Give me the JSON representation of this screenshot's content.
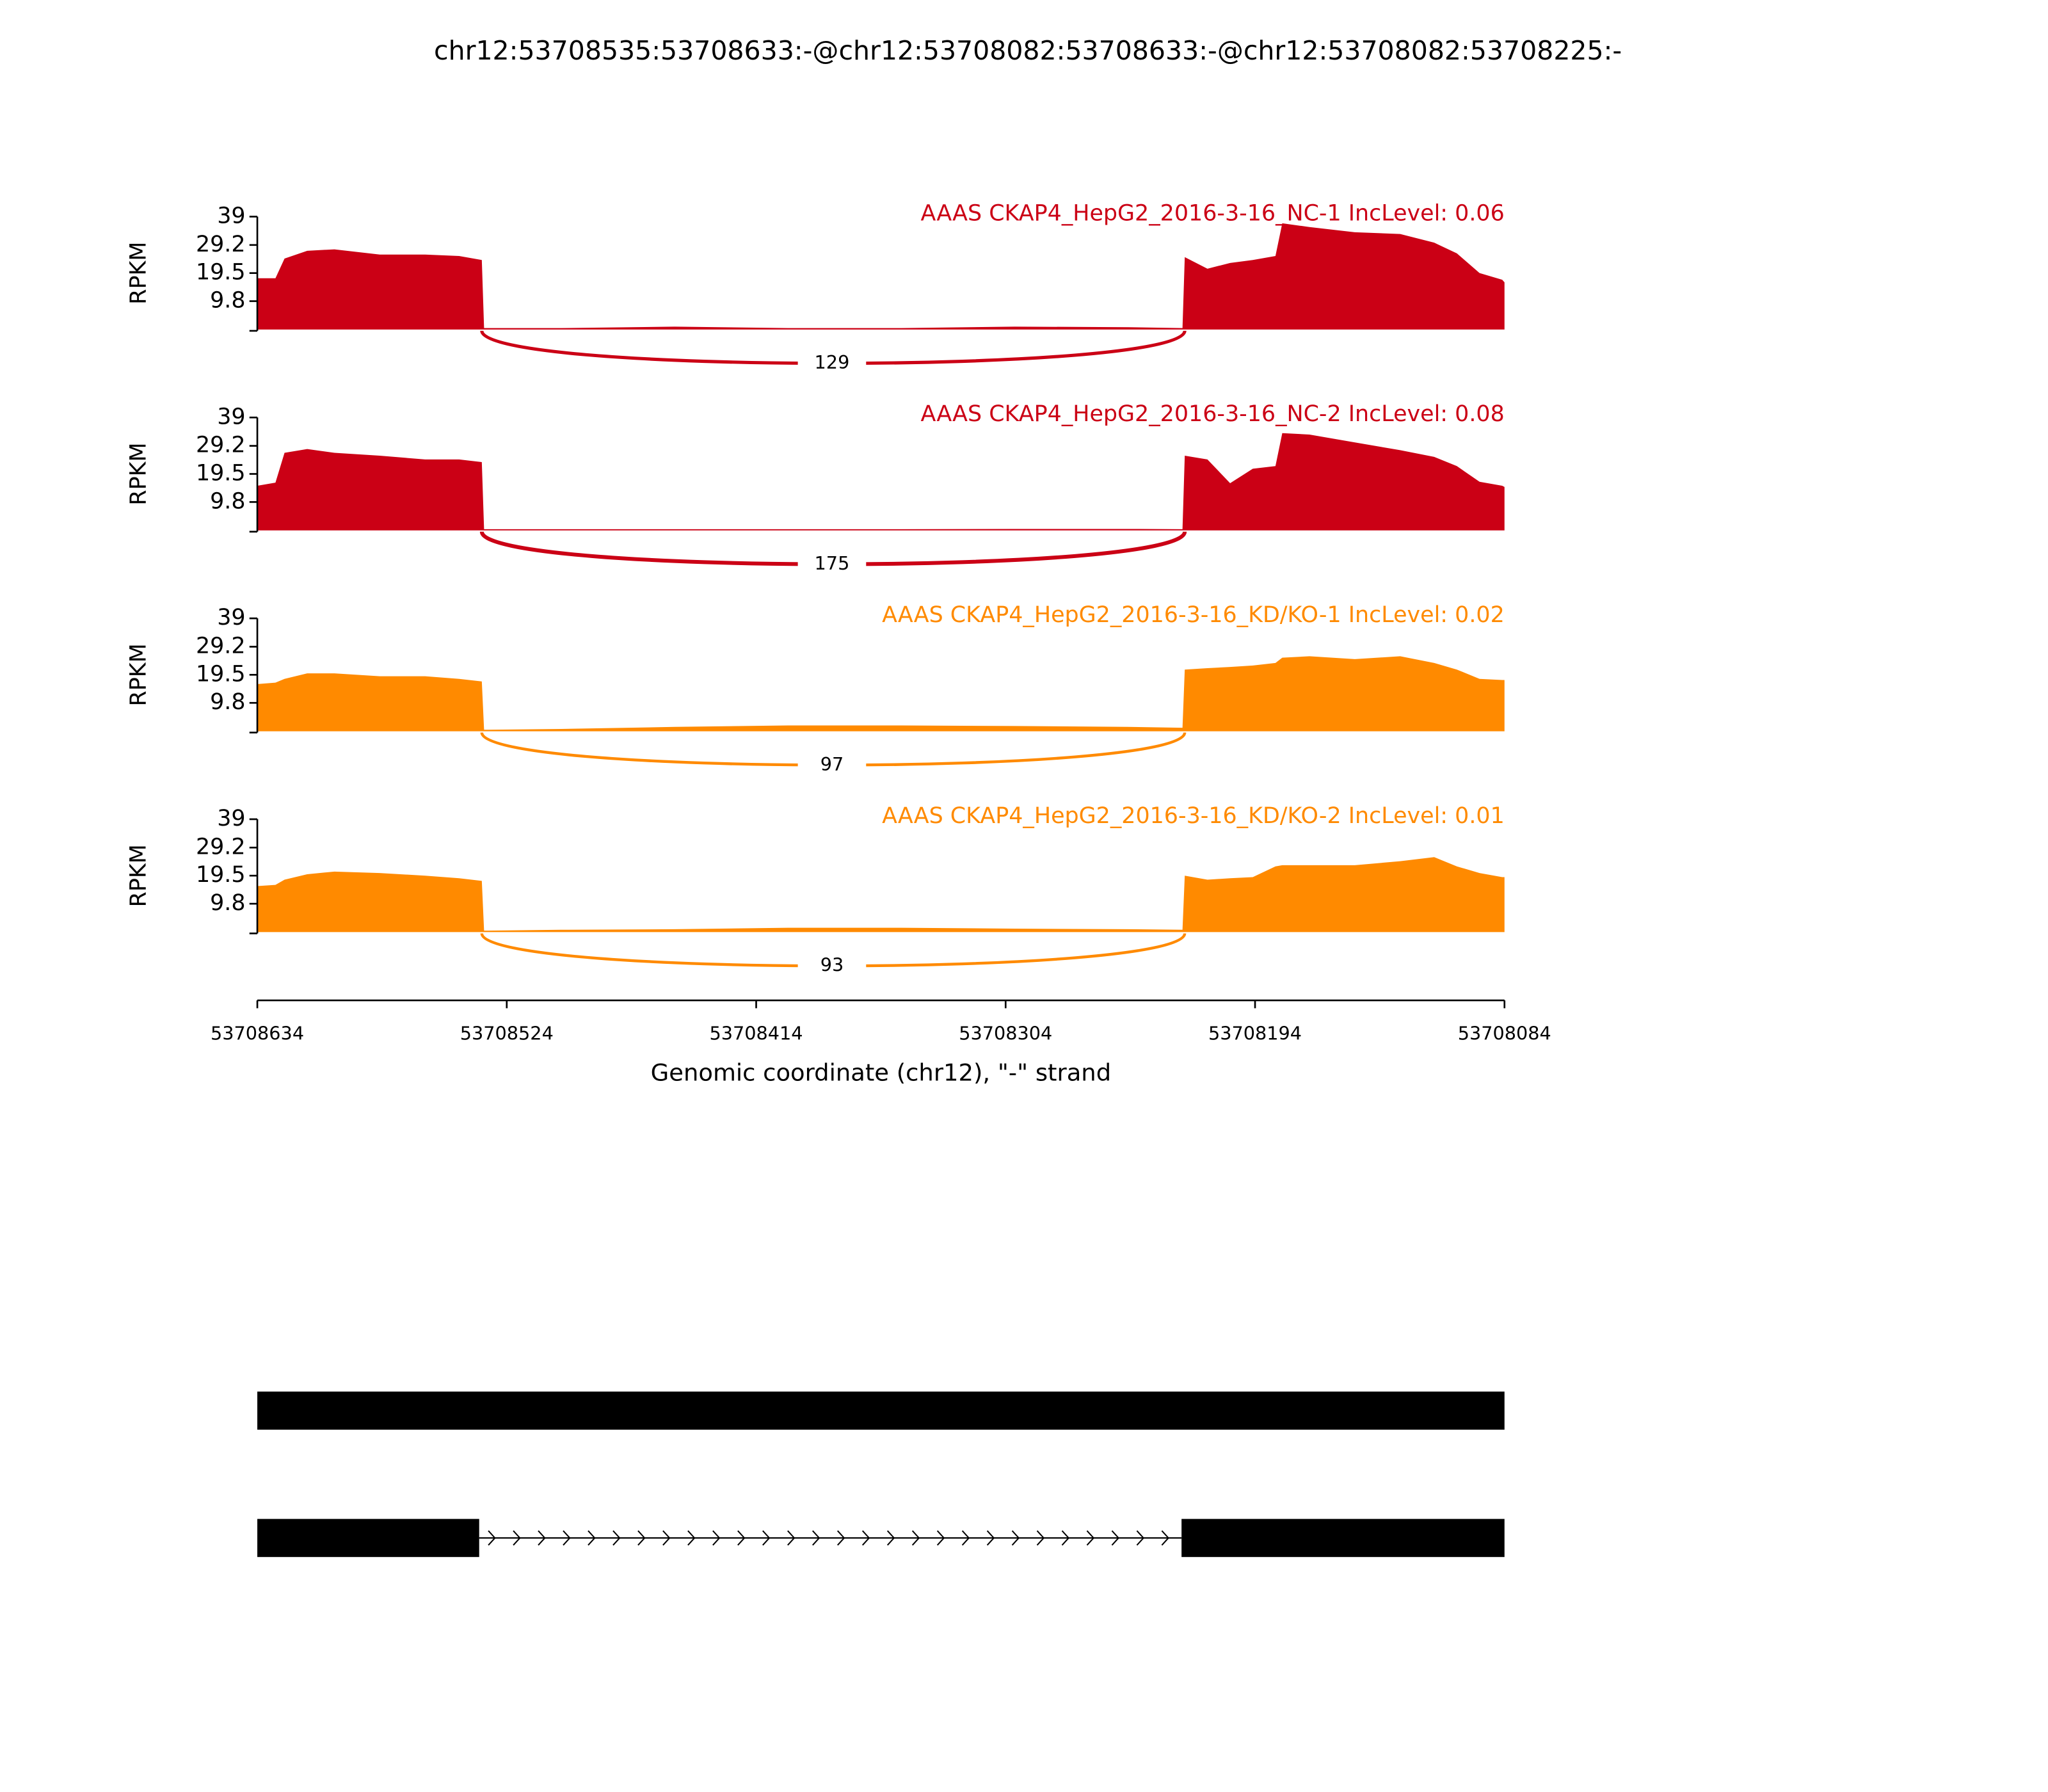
{
  "title": "chr12:53708535:53708633:-@chr12:53708082:53708633:-@chr12:53708082:53708225:-",
  "chart_data": [
    {
      "type": "area",
      "title": "AAAS CKAP4_HepG2_2016-3-16_NC-1 IncLevel: 0.06",
      "ylabel": "RPKM",
      "color": "#cb0015",
      "ylim": [
        0,
        39
      ],
      "yticks": [
        9.8,
        19.5,
        29.2,
        39
      ],
      "xlim": [
        53708634,
        53708084
      ],
      "x": [
        53708634,
        53708626,
        53708622,
        53708612,
        53708600,
        53708580,
        53708560,
        53708545,
        53708535,
        53708534,
        53708500,
        53708450,
        53708400,
        53708350,
        53708300,
        53708250,
        53708226,
        53708225,
        53708215,
        53708205,
        53708195,
        53708185,
        53708182,
        53708170,
        53708150,
        53708130,
        53708115,
        53708105,
        53708095,
        53708085,
        53708084
      ],
      "values": [
        17.7,
        17.7,
        24.5,
        27.2,
        27.7,
        25.9,
        25.9,
        25.4,
        24,
        0.5,
        0.5,
        1,
        0.5,
        0.5,
        1,
        0.8,
        0.5,
        25,
        21,
        23,
        24,
        25.4,
        36.7,
        35.4,
        33.6,
        33,
        30,
        26.3,
        19.5,
        17.2,
        16.3
      ],
      "junctions": [
        {
          "start": 53708535,
          "end": 53708225,
          "count": 129
        }
      ]
    },
    {
      "type": "area",
      "title": "AAAS CKAP4_HepG2_2016-3-16_NC-2 IncLevel: 0.08",
      "ylabel": "RPKM",
      "color": "#cb0015",
      "ylim": [
        0,
        39
      ],
      "yticks": [
        9.8,
        19.5,
        29.2,
        39
      ],
      "xlim": [
        53708634,
        53708084
      ],
      "x": [
        53708634,
        53708626,
        53708622,
        53708612,
        53708600,
        53708580,
        53708560,
        53708545,
        53708535,
        53708534,
        53708500,
        53708450,
        53708400,
        53708350,
        53708300,
        53708250,
        53708226,
        53708225,
        53708215,
        53708205,
        53708195,
        53708185,
        53708182,
        53708170,
        53708150,
        53708130,
        53708115,
        53708105,
        53708095,
        53708085,
        53708084
      ],
      "values": [
        15.4,
        16.5,
        26.8,
        28.1,
        26.8,
        25.8,
        24.5,
        24.5,
        23.6,
        0.4,
        0.4,
        0.4,
        0.4,
        0.4,
        0.5,
        0.5,
        0.4,
        25.8,
        24.5,
        16.3,
        21.3,
        22.2,
        33.6,
        33.1,
        30.4,
        27.7,
        25.4,
        22.2,
        16.8,
        15.4,
        15
      ],
      "junctions": [
        {
          "start": 53708535,
          "end": 53708225,
          "count": 175
        }
      ]
    },
    {
      "type": "area",
      "title": "AAAS CKAP4_HepG2_2016-3-16_KD/KO-1 IncLevel: 0.02",
      "ylabel": "RPKM",
      "color": "#ff8a00",
      "ylim": [
        0,
        39
      ],
      "yticks": [
        9.8,
        19.5,
        29.2,
        39
      ],
      "xlim": [
        53708634,
        53708084
      ],
      "x": [
        53708634,
        53708626,
        53708622,
        53708612,
        53708600,
        53708580,
        53708560,
        53708545,
        53708535,
        53708534,
        53708500,
        53708450,
        53708400,
        53708350,
        53708300,
        53708250,
        53708226,
        53708225,
        53708215,
        53708205,
        53708195,
        53708185,
        53708182,
        53708170,
        53708150,
        53708130,
        53708115,
        53708105,
        53708095,
        53708085,
        53708084
      ],
      "values": [
        16.3,
        16.8,
        18.1,
        20,
        20,
        19,
        19,
        18.1,
        17.2,
        0.5,
        0.8,
        1.5,
        2,
        2,
        1.8,
        1.5,
        1.2,
        21.3,
        21.8,
        22.2,
        22.7,
        23.6,
        25.4,
        25.9,
        24.9,
        25.9,
        23.6,
        21.3,
        18.1,
        17.7,
        17.7
      ],
      "junctions": [
        {
          "start": 53708535,
          "end": 53708225,
          "count": 97
        }
      ]
    },
    {
      "type": "area",
      "title": "AAAS CKAP4_HepG2_2016-3-16_KD/KO-2 IncLevel: 0.01",
      "ylabel": "RPKM",
      "color": "#ff8a00",
      "ylim": [
        0,
        39
      ],
      "yticks": [
        9.8,
        19.5,
        29.2,
        39
      ],
      "xlim": [
        53708634,
        53708084
      ],
      "x": [
        53708634,
        53708626,
        53708622,
        53708612,
        53708600,
        53708580,
        53708560,
        53708545,
        53708535,
        53708534,
        53708500,
        53708450,
        53708400,
        53708350,
        53708300,
        53708250,
        53708226,
        53708225,
        53708215,
        53708205,
        53708195,
        53708185,
        53708182,
        53708170,
        53708150,
        53708130,
        53708115,
        53708105,
        53708095,
        53708085,
        53708084
      ],
      "values": [
        15.9,
        16.3,
        18.1,
        20,
        20.9,
        20.4,
        19.5,
        18.6,
        17.7,
        0.5,
        0.8,
        1,
        1.5,
        1.5,
        1.2,
        1,
        0.8,
        19.5,
        18.1,
        18.6,
        19,
        22.7,
        23.1,
        23.1,
        23.1,
        24.5,
        25.9,
        22.7,
        20.4,
        19,
        19
      ],
      "junctions": [
        {
          "start": 53708535,
          "end": 53708225,
          "count": 93
        }
      ],
      "xticks": [
        53708634,
        53708524,
        53708414,
        53708304,
        53708194,
        53708084
      ],
      "xlabel": "Genomic coordinate (chr12), \"-\" strand"
    }
  ]
}
